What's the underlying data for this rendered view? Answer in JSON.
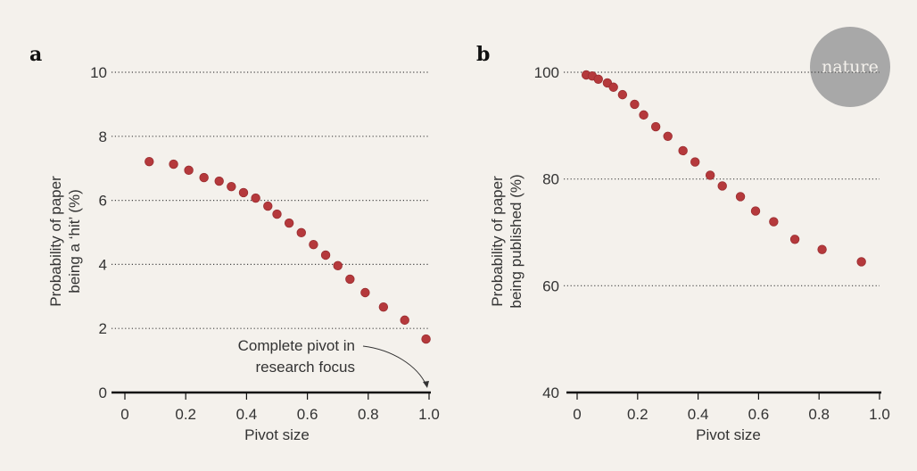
{
  "logo": {
    "text": "nature",
    "color": "#a8a8a8"
  },
  "colors": {
    "point": "#b5393c",
    "background": "#f4f1ec"
  },
  "chart_data": [
    {
      "type": "scatter",
      "panel": "a",
      "xlabel": "Pivot size",
      "ylabel": [
        "Probability of paper",
        "being a ‘hit’ (%)"
      ],
      "xlim": [
        0,
        1.0
      ],
      "ylim": [
        0,
        10
      ],
      "xticks": [
        "0",
        "0.2",
        "0.4",
        "0.6",
        "0.8",
        "1.0"
      ],
      "yticks": [
        "0",
        "2",
        "4",
        "6",
        "8",
        "10"
      ],
      "grid": "dotted horizontal",
      "annotation": [
        "Complete pivot in",
        "research focus"
      ],
      "x": [
        0.08,
        0.16,
        0.21,
        0.26,
        0.31,
        0.35,
        0.39,
        0.43,
        0.47,
        0.5,
        0.54,
        0.58,
        0.62,
        0.66,
        0.7,
        0.74,
        0.79,
        0.85,
        0.92,
        0.99
      ],
      "y": [
        7.21,
        7.13,
        6.94,
        6.71,
        6.6,
        6.43,
        6.24,
        6.07,
        5.82,
        5.57,
        5.29,
        4.99,
        4.62,
        4.29,
        3.96,
        3.54,
        3.12,
        2.67,
        2.26,
        1.67
      ]
    },
    {
      "type": "scatter",
      "panel": "b",
      "xlabel": "Pivot size",
      "ylabel": [
        "Probability of paper",
        "being published (%)"
      ],
      "xlim": [
        0,
        1.0
      ],
      "ylim": [
        40,
        100
      ],
      "xticks": [
        "0",
        "0.2",
        "0.4",
        "0.6",
        "0.8",
        "1.0"
      ],
      "yticks": [
        "40",
        "60",
        "80",
        "100"
      ],
      "grid": "dotted horizontal",
      "x": [
        0.03,
        0.05,
        0.07,
        0.1,
        0.12,
        0.15,
        0.19,
        0.22,
        0.26,
        0.3,
        0.35,
        0.39,
        0.44,
        0.48,
        0.54,
        0.59,
        0.65,
        0.72,
        0.81,
        0.94
      ],
      "y": [
        99.5,
        99.3,
        98.7,
        98.0,
        97.2,
        95.8,
        94.0,
        92.0,
        89.8,
        88.0,
        85.3,
        83.2,
        80.7,
        78.7,
        76.7,
        74.0,
        72.0,
        68.7,
        66.8,
        64.5
      ]
    }
  ]
}
